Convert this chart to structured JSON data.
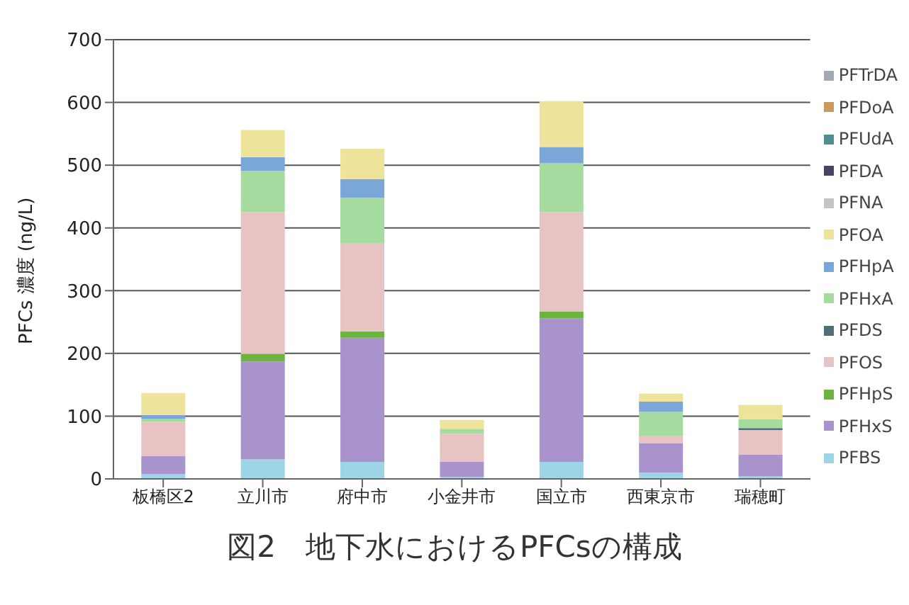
{
  "chart_data": {
    "type": "bar",
    "title": "図2　地下水におけるPFCsの構成",
    "ylabel": "PFCs 濃度 (ng/L)",
    "stacked": true,
    "grid": "y",
    "legend": "right",
    "categories": [
      "板橋区2",
      "立川市",
      "府中市",
      "小金井市",
      "国立市",
      "西東京市",
      "瑞穂町"
    ],
    "ylim": [
      0,
      700
    ],
    "yticks": [
      0,
      100,
      200,
      300,
      400,
      500,
      600,
      700
    ],
    "series": [
      {
        "name": "PFBS",
        "color": "#9dd4e6",
        "values": [
          8,
          31,
          27,
          3,
          27,
          10,
          4
        ]
      },
      {
        "name": "PFHxS",
        "color": "#a893cc",
        "values": [
          28,
          156,
          198,
          24,
          229,
          47,
          35
        ]
      },
      {
        "name": "PFHpS",
        "color": "#6db33f",
        "values": [
          0,
          12,
          10,
          0,
          11,
          0,
          0
        ]
      },
      {
        "name": "PFOS",
        "color": "#e8c3c3",
        "values": [
          55,
          226,
          141,
          45,
          158,
          12,
          39
        ]
      },
      {
        "name": "PFDS",
        "color": "#4f6f78",
        "values": [
          0,
          0,
          0,
          0,
          0,
          0,
          3
        ]
      },
      {
        "name": "PFHxA",
        "color": "#a6dba0",
        "values": [
          5,
          66,
          72,
          8,
          78,
          38,
          14
        ]
      },
      {
        "name": "PFHpA",
        "color": "#7aa6d8",
        "values": [
          6,
          22,
          30,
          0,
          26,
          16,
          0
        ]
      },
      {
        "name": "PFOA",
        "color": "#ede39a",
        "values": [
          35,
          43,
          48,
          14,
          73,
          13,
          23
        ]
      },
      {
        "name": "PFNA",
        "color": "#c4c4c4",
        "values": [
          0,
          0,
          0,
          0,
          0,
          0,
          0
        ]
      },
      {
        "name": "PFDA",
        "color": "#4b4168",
        "values": [
          0,
          0,
          0,
          0,
          0,
          0,
          0
        ]
      },
      {
        "name": "PFUdA",
        "color": "#4f8f8f",
        "values": [
          0,
          0,
          0,
          0,
          0,
          0,
          0
        ]
      },
      {
        "name": "PFDoA",
        "color": "#c99a5b",
        "values": [
          0,
          0,
          0,
          0,
          0,
          0,
          0
        ]
      },
      {
        "name": "PFTrDA",
        "color": "#a3a9b8",
        "values": [
          0,
          0,
          0,
          0,
          0,
          0,
          0
        ]
      }
    ]
  }
}
